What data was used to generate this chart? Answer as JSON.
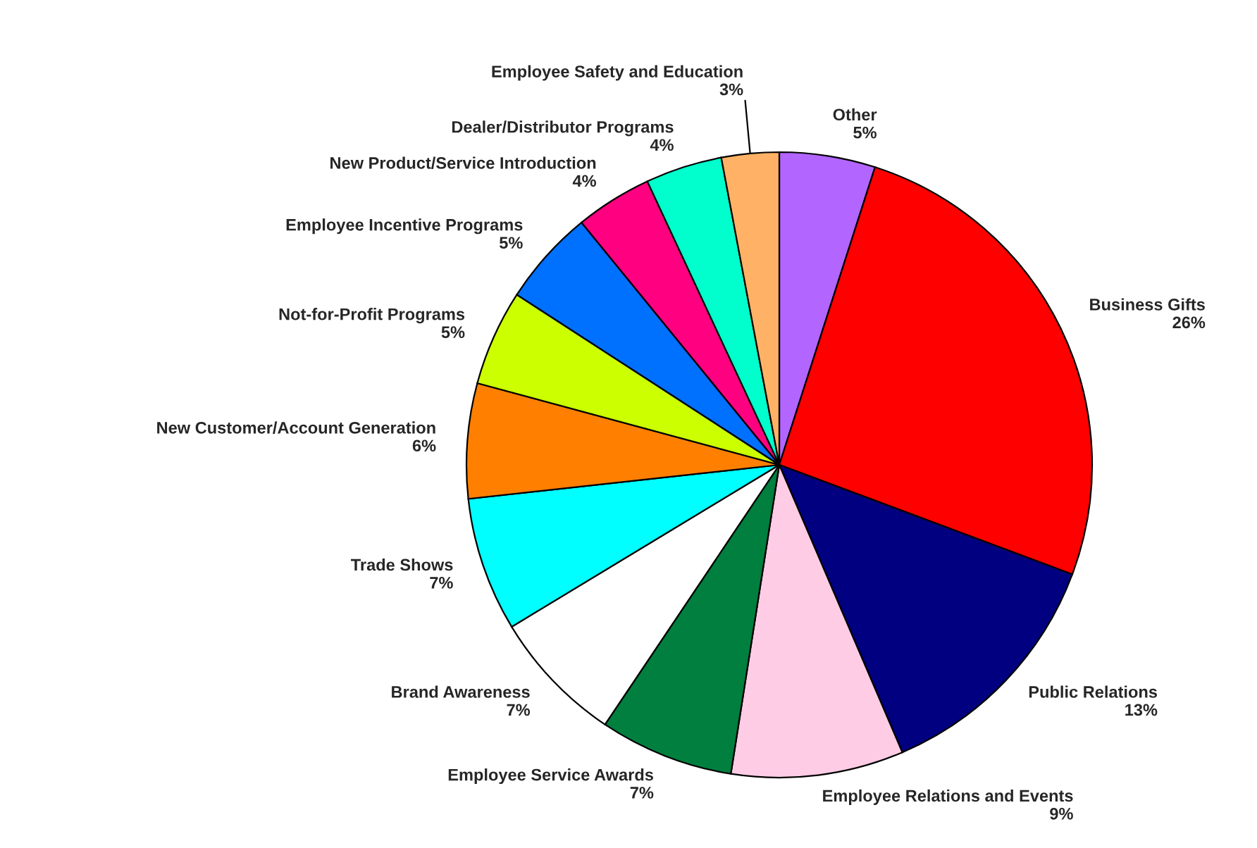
{
  "chart_data": {
    "type": "pie",
    "categories": [
      "Other",
      "Business Gifts",
      "Public Relations",
      "Employee Relations and Events",
      "Employee Service Awards",
      "Brand Awareness",
      "Trade Shows",
      "New Customer/Account Generation",
      "Not-for-Profit Programs",
      "Employee Incentive Programs",
      "New Product/Service Introduction",
      "Dealer/Distributor Programs",
      "Employee Safety and Education"
    ],
    "values": [
      5,
      26,
      13,
      9,
      7,
      7,
      7,
      6,
      5,
      5,
      4,
      4,
      3
    ],
    "colors": [
      "#b266ff",
      "#ff0000",
      "#000080",
      "#ffcce6",
      "#007f3f",
      "#ffffff",
      "#00ffff",
      "#ff7f00",
      "#ccff00",
      "#0070ff",
      "#ff0080",
      "#00ffcc",
      "#ffb266"
    ],
    "value_labels": [
      "5%",
      "26%",
      "13%",
      "9%",
      "7%",
      "7%",
      "7%",
      "6%",
      "5%",
      "5%",
      "4%",
      "4%",
      "3%"
    ]
  }
}
